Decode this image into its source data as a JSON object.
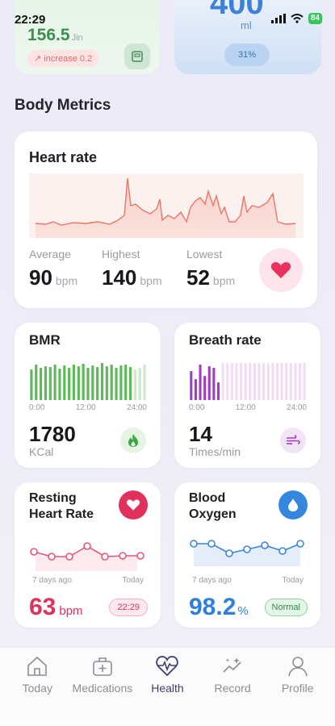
{
  "status": {
    "time": "22:29",
    "battery": "84"
  },
  "weight": {
    "value": "156.5",
    "unit": "Jin",
    "change": "increase 0.2"
  },
  "water": {
    "value": "400",
    "unit": "ml",
    "percent": "31%"
  },
  "section_title": "Body Metrics",
  "heart_rate": {
    "title": "Heart rate",
    "stats": [
      {
        "label": "Average",
        "value": "90",
        "unit": "bpm"
      },
      {
        "label": "Highest",
        "value": "140",
        "unit": "bpm"
      },
      {
        "label": "Lowest",
        "value": "52",
        "unit": "bpm"
      }
    ],
    "color": "#f07a6a"
  },
  "bmr": {
    "title": "BMR",
    "ticks": [
      "0:00",
      "12:00",
      "24:00"
    ],
    "value": "1780",
    "unit": "KCal",
    "color": "#5fb85a",
    "icon": "flame-icon"
  },
  "breath": {
    "title": "Breath rate",
    "ticks": [
      "0:00",
      "12:00",
      "24:00"
    ],
    "value": "14",
    "unit": "Times/min",
    "color": "#a23cc0",
    "icon": "wind-icon"
  },
  "resting_hr": {
    "title_line1": "Resting",
    "title_line2": "Heart Rate",
    "left_label": "7 days ago",
    "right_label": "Today",
    "value": "63",
    "unit": "bpm",
    "time": "22:29",
    "color": "#e0305b"
  },
  "blood_oxygen": {
    "title_line1": "Blood",
    "title_line2": "Oxygen",
    "left_label": "7 days ago",
    "right_label": "Today",
    "value": "98.2",
    "unit": "%",
    "status": "Normal",
    "color": "#2f7fe0"
  },
  "tabs": [
    {
      "label": "Today",
      "icon": "home-icon"
    },
    {
      "label": "Medications",
      "icon": "medkit-icon"
    },
    {
      "label": "Health",
      "icon": "heart-pulse-icon",
      "active": true
    },
    {
      "label": "Record",
      "icon": "chart-stars-icon"
    },
    {
      "label": "Profile",
      "icon": "person-icon"
    }
  ]
}
